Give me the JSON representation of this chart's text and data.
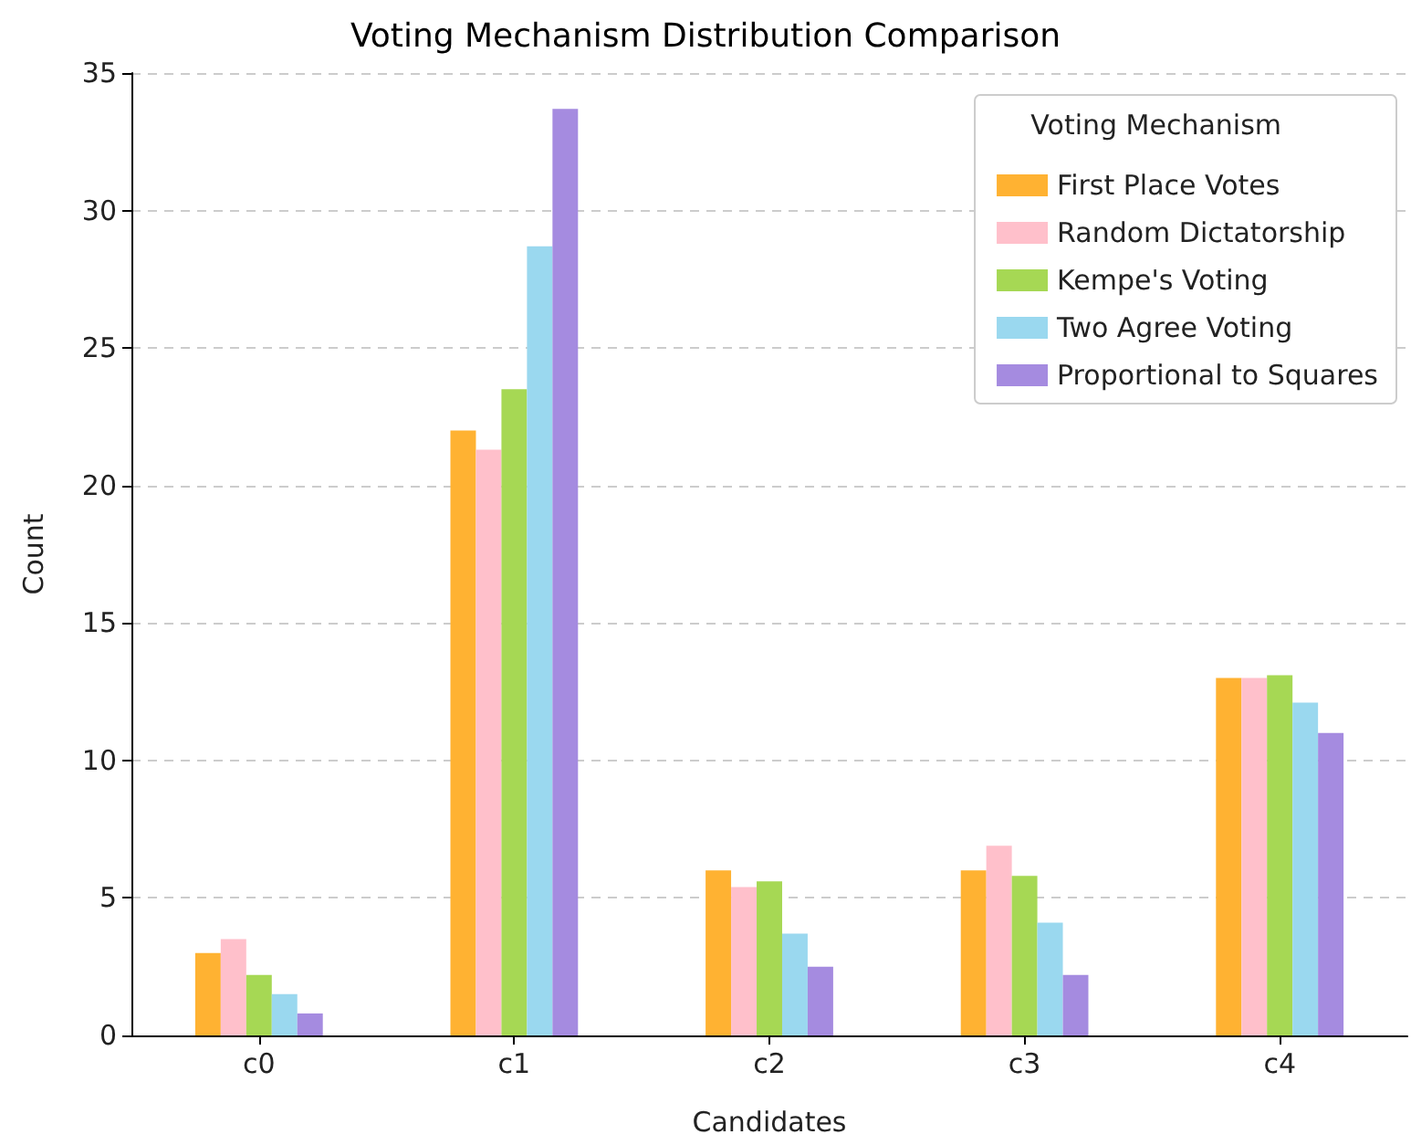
{
  "chart_data": {
    "type": "bar",
    "title": "Voting Mechanism Distribution Comparison",
    "xlabel": "Candidates",
    "ylabel": "Count",
    "legend_title": "Voting Mechanism",
    "categories": [
      "c0",
      "c1",
      "c2",
      "c3",
      "c4"
    ],
    "series": [
      {
        "name": "First Place Votes",
        "color": "#ffb232",
        "values": [
          3.0,
          22.0,
          6.0,
          6.0,
          13.0
        ]
      },
      {
        "name": "Random Dictatorship",
        "color": "#ffc0cb",
        "values": [
          3.5,
          21.3,
          5.4,
          6.9,
          13.0
        ]
      },
      {
        "name": "Kempe's Voting",
        "color": "#a6d854",
        "values": [
          2.2,
          23.5,
          5.6,
          5.8,
          13.1
        ]
      },
      {
        "name": "Two Agree Voting",
        "color": "#9ad8ef",
        "values": [
          1.5,
          28.7,
          3.7,
          4.1,
          12.1
        ]
      },
      {
        "name": "Proportional to Squares",
        "color": "#a58be0",
        "values": [
          0.8,
          33.7,
          2.5,
          2.2,
          11.0
        ]
      }
    ],
    "ylim": [
      0,
      35
    ],
    "yticks": [
      0,
      5,
      10,
      15,
      20,
      25,
      30,
      35
    ],
    "grid": "y",
    "legend": "top right"
  }
}
